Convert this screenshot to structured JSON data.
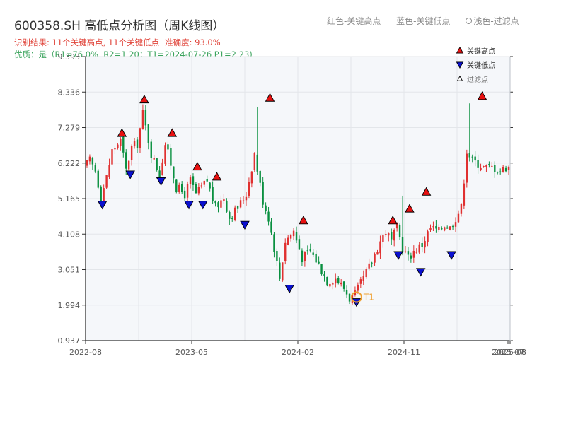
{
  "header": {
    "title": "600358.SH 高低点分析图（周K线图）",
    "legend_red": "红色-关键高点",
    "legend_blue": "蓝色-关键低点",
    "legend_light": "浅色-过滤点",
    "result_text": "识别结果: 11个关键高点, 11个关键低点",
    "accuracy_text": "准确度: 93.0%",
    "quality_text": "优质：是（R1=76.0%, R2=1.20；T1=2024-07-26 P1=2.23)"
  },
  "colors": {
    "up": "#e03030",
    "down": "#0a9040",
    "high_marker": "#e81010",
    "low_marker": "#0a10d0",
    "t1_marker": "#f0a030",
    "plot_bg": "#f5f7fa",
    "grid": "#e3e6ea"
  },
  "chart_data": {
    "type": "candlestick",
    "x_ticks": [
      "2022-08",
      "2023-05",
      "2024-02",
      "2024-11",
      "2025-07",
      "2025-08"
    ],
    "y_ticks": [
      "0.937",
      "1.994",
      "3.051",
      "4.108",
      "5.165",
      "6.222",
      "7.279",
      "8.336",
      "9.393"
    ],
    "ylim": [
      0.937,
      9.393
    ],
    "x_range_weeks": [
      0,
      152
    ],
    "grid": true,
    "legend_placement": "top-right",
    "legend": [
      {
        "label": "关键高点",
        "marker": "high"
      },
      {
        "label": "关键低点",
        "marker": "low"
      },
      {
        "label": "过滤点",
        "marker": "filtered"
      }
    ],
    "t1_label": "T1",
    "t1": {
      "week": 97,
      "value": 2.23
    },
    "anchors": [
      [
        0,
        6.1
      ],
      [
        2,
        6.3
      ],
      [
        4,
        6.0
      ],
      [
        6,
        5.2
      ],
      [
        8,
        5.8
      ],
      [
        10,
        6.6
      ],
      [
        13,
        6.9
      ],
      [
        15,
        6.0
      ],
      [
        17,
        6.7
      ],
      [
        19,
        6.8
      ],
      [
        21,
        7.7
      ],
      [
        24,
        6.5
      ],
      [
        27,
        5.9
      ],
      [
        29,
        6.8
      ],
      [
        31,
        6.2
      ],
      [
        33,
        5.5
      ],
      [
        36,
        5.3
      ],
      [
        38,
        5.7
      ],
      [
        40,
        5.3
      ],
      [
        42,
        5.5
      ],
      [
        44,
        5.7
      ],
      [
        47,
        4.9
      ],
      [
        50,
        5.2
      ],
      [
        52,
        4.6
      ],
      [
        55,
        4.9
      ],
      [
        58,
        5.3
      ],
      [
        61,
        6.5
      ],
      [
        64,
        5.1
      ],
      [
        66,
        4.6
      ],
      [
        68,
        3.7
      ],
      [
        70,
        2.8
      ],
      [
        72,
        3.9
      ],
      [
        75,
        4.2
      ],
      [
        78,
        3.4
      ],
      [
        81,
        3.6
      ],
      [
        84,
        3.2
      ],
      [
        87,
        2.7
      ],
      [
        90,
        2.8
      ],
      [
        93,
        2.5
      ],
      [
        95,
        2.2
      ],
      [
        97,
        2.3
      ],
      [
        100,
        2.8
      ],
      [
        103,
        3.3
      ],
      [
        106,
        3.9
      ],
      [
        108,
        4.2
      ],
      [
        110,
        3.9
      ],
      [
        112,
        4.3
      ],
      [
        114,
        3.7
      ],
      [
        116,
        3.4
      ],
      [
        118,
        3.6
      ],
      [
        121,
        3.8
      ],
      [
        124,
        4.3
      ],
      [
        127,
        4.2
      ],
      [
        129,
        4.4
      ],
      [
        131,
        4.3
      ],
      [
        133,
        4.6
      ],
      [
        135,
        4.9
      ],
      [
        137,
        6.6
      ],
      [
        139,
        6.3
      ],
      [
        141,
        6.2
      ],
      [
        143,
        6.1
      ],
      [
        146,
        6.1
      ],
      [
        149,
        6.0
      ],
      [
        151,
        6.1
      ]
    ],
    "spikes": [
      {
        "week": 21,
        "value": 7.95
      },
      {
        "week": 61,
        "value": 7.9
      },
      {
        "week": 113,
        "value": 5.25
      },
      {
        "week": 137,
        "value": 8.0
      }
    ],
    "key_highs": [
      {
        "week": 13,
        "value": 7.0
      },
      {
        "week": 21,
        "value": 8.0
      },
      {
        "week": 31,
        "value": 7.0
      },
      {
        "week": 40,
        "value": 6.0
      },
      {
        "week": 47,
        "value": 5.7
      },
      {
        "week": 66,
        "value": 8.05
      },
      {
        "week": 78,
        "value": 4.4
      },
      {
        "week": 110,
        "value": 4.4
      },
      {
        "week": 116,
        "value": 4.75
      },
      {
        "week": 122,
        "value": 5.25
      },
      {
        "week": 142,
        "value": 8.1
      }
    ],
    "key_lows": [
      {
        "week": 6,
        "value": 5.1
      },
      {
        "week": 16,
        "value": 6.0
      },
      {
        "week": 27,
        "value": 5.8
      },
      {
        "week": 37,
        "value": 5.1
      },
      {
        "week": 42,
        "value": 5.1
      },
      {
        "week": 57,
        "value": 4.5
      },
      {
        "week": 73,
        "value": 2.6
      },
      {
        "week": 97,
        "value": 2.2
      },
      {
        "week": 112,
        "value": 3.6
      },
      {
        "week": 120,
        "value": 3.1
      },
      {
        "week": 131,
        "value": 3.6
      }
    ]
  }
}
